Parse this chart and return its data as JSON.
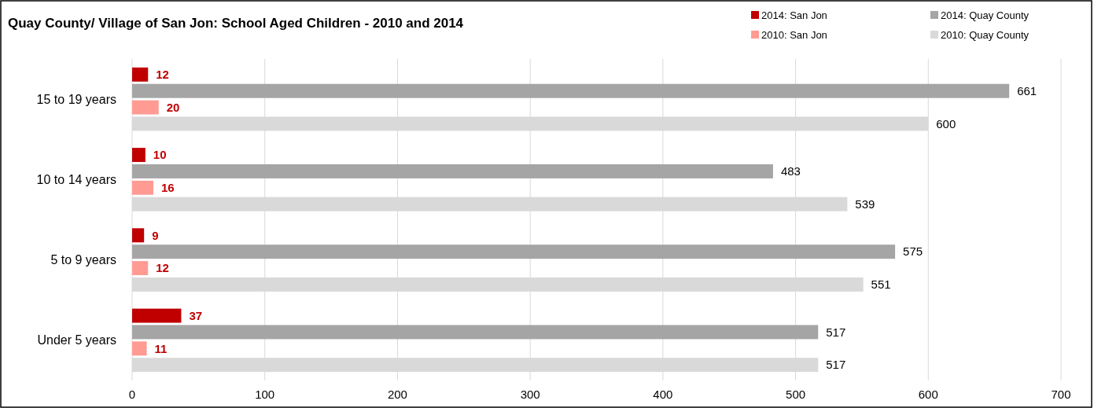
{
  "chart_data": {
    "type": "bar",
    "orientation": "horizontal",
    "title": "Quay County/ Village of San Jon: School Aged Children - 2010 and 2014",
    "categories": [
      "15 to 19 years",
      "10 to 14 years",
      "5 to 9 years",
      "Under 5 years"
    ],
    "series": [
      {
        "name": "2014: San Jon",
        "color": "#c00000",
        "values": [
          12,
          10,
          9,
          37
        ]
      },
      {
        "name": "2014:  Quay County",
        "color": "#a5a5a5",
        "values": [
          661,
          483,
          575,
          517
        ]
      },
      {
        "name": "2010: San Jon",
        "color": "#ff9b93",
        "values": [
          20,
          16,
          12,
          11
        ]
      },
      {
        "name": "2010:  Quay County",
        "color": "#d9d9d9",
        "values": [
          600,
          539,
          551,
          517
        ]
      }
    ],
    "xlim": [
      0,
      700
    ],
    "xticks": [
      0,
      100,
      200,
      300,
      400,
      500,
      600,
      700
    ],
    "grid": "x",
    "legend": "top right",
    "data_labels": true
  }
}
